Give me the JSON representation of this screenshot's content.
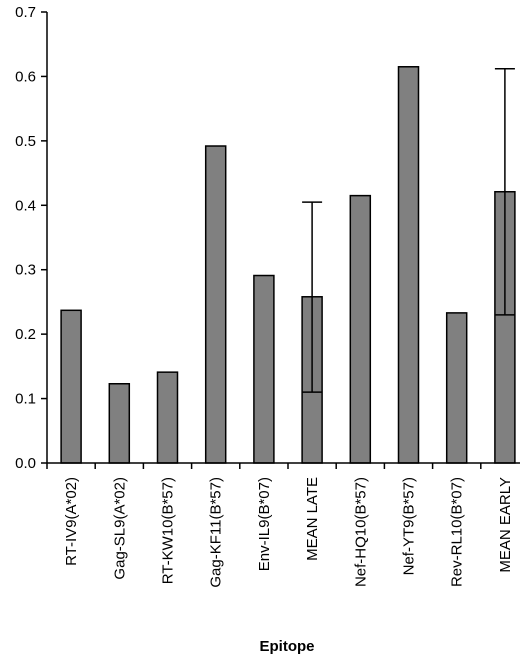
{
  "chart_data": {
    "type": "bar",
    "title": "",
    "xlabel": "Epitope",
    "ylabel": "",
    "ylim": [
      0,
      0.7
    ],
    "yticks": [
      "0.0",
      "0.1",
      "0.2",
      "0.3",
      "0.4",
      "0.5",
      "0.6",
      "0.7"
    ],
    "grid": false,
    "bar_color": "#808080",
    "categories": [
      "RT-IV9(A*02)",
      "Gag-SL9(A*02)",
      "RT-KW10(B*57)",
      "Gag-KF11(B*57)",
      "Env-IL9(B*07)",
      "MEAN LATE",
      "Nef-HQ10(B*57)",
      "Nef-YT9(B*57)",
      "Rev-RL10(B*07)",
      "MEAN EARLY"
    ],
    "values": [
      0.237,
      0.123,
      0.141,
      0.492,
      0.291,
      0.258,
      0.415,
      0.615,
      0.233,
      0.421
    ],
    "error_bars": [
      null,
      null,
      null,
      null,
      null,
      [
        0.11,
        0.405
      ],
      null,
      null,
      null,
      [
        0.23,
        0.612
      ]
    ]
  }
}
